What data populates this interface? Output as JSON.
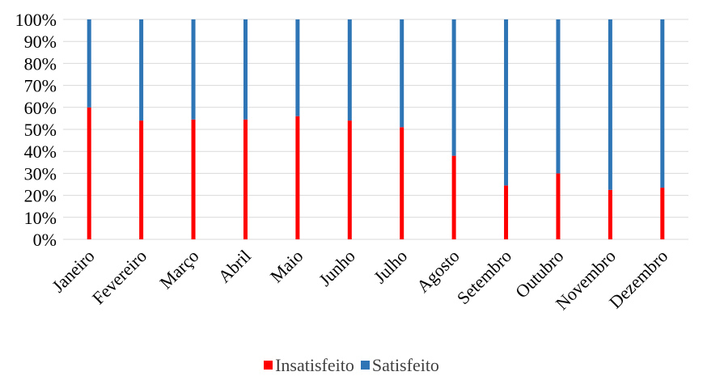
{
  "chart_data": {
    "type": "bar",
    "stacked": true,
    "percent": true,
    "categories": [
      "Janeiro",
      "Fevereiro",
      "Março",
      "Abril",
      "Maio",
      "Junho",
      "Julho",
      "Agosto",
      "Setembro",
      "Outubro",
      "Novembro",
      "Dezembro"
    ],
    "series": [
      {
        "name": "Insatisfeito",
        "color": "#ff0000",
        "values": [
          60,
          54,
          54.5,
          54.5,
          56,
          54,
          51,
          38,
          24.5,
          30,
          22.5,
          23.5
        ]
      },
      {
        "name": "Satisfeito",
        "color": "#2e75b6",
        "values": [
          40,
          46,
          45.5,
          45.5,
          44,
          46,
          49,
          62,
          75.5,
          70,
          77.5,
          76.5
        ]
      }
    ],
    "ylim": [
      0,
      100
    ],
    "yticks": [
      "0%",
      "10%",
      "20%",
      "30%",
      "40%",
      "50%",
      "60%",
      "70%",
      "80%",
      "90%",
      "100%"
    ],
    "grid": true,
    "legend_position": "bottom"
  }
}
